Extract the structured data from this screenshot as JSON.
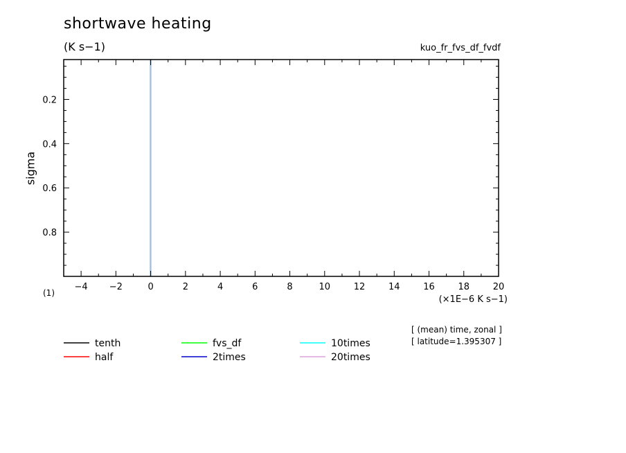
{
  "chart_data": {
    "type": "line",
    "title": "shortwave heating",
    "units": "(K s−1)",
    "run_name": "kuo_fr_fvs_df_fvdf",
    "ylabel": "sigma",
    "y_dim_label": "(1)",
    "xlabel": "(×1E−6 K s−1)",
    "xlim": [
      -5,
      20
    ],
    "ylim": [
      1.0,
      0.02
    ],
    "x_ticks": [
      -4,
      -2,
      0,
      2,
      4,
      6,
      8,
      10,
      12,
      14,
      16,
      18,
      20
    ],
    "x_tick_labels": [
      "−4",
      "−2",
      "0",
      "2",
      "4",
      "6",
      "8",
      "10",
      "12",
      "14",
      "16",
      "18",
      "20"
    ],
    "y_ticks": [
      0.2,
      0.4,
      0.6,
      0.8
    ],
    "y_tick_labels": [
      "0.2",
      "0.4",
      "0.6",
      "0.8"
    ],
    "grid": false,
    "legend_position": "bottom-left",
    "series": [
      {
        "name": "tenth",
        "color": "#000000",
        "x": [
          0,
          0
        ],
        "y": [
          1.0,
          0.02
        ]
      },
      {
        "name": "half",
        "color": "#ff0000",
        "x": [
          0,
          0
        ],
        "y": [
          1.0,
          0.02
        ]
      },
      {
        "name": "fvs_df",
        "color": "#00ff00",
        "x": [
          0,
          0
        ],
        "y": [
          1.0,
          0.02
        ]
      },
      {
        "name": "2times",
        "color": "#0000cc",
        "x": [
          0,
          0
        ],
        "y": [
          1.0,
          0.02
        ]
      },
      {
        "name": "10times",
        "color": "#00ffff",
        "x": [
          0,
          0
        ],
        "y": [
          1.0,
          0.02
        ]
      },
      {
        "name": "20times",
        "color": "#dda0dd",
        "x": [
          0,
          0
        ],
        "y": [
          1.0,
          0.02
        ]
      }
    ],
    "annotations": [
      "[ (mean) time, zonal ]",
      "[ latitude=1.395307 ]"
    ]
  }
}
